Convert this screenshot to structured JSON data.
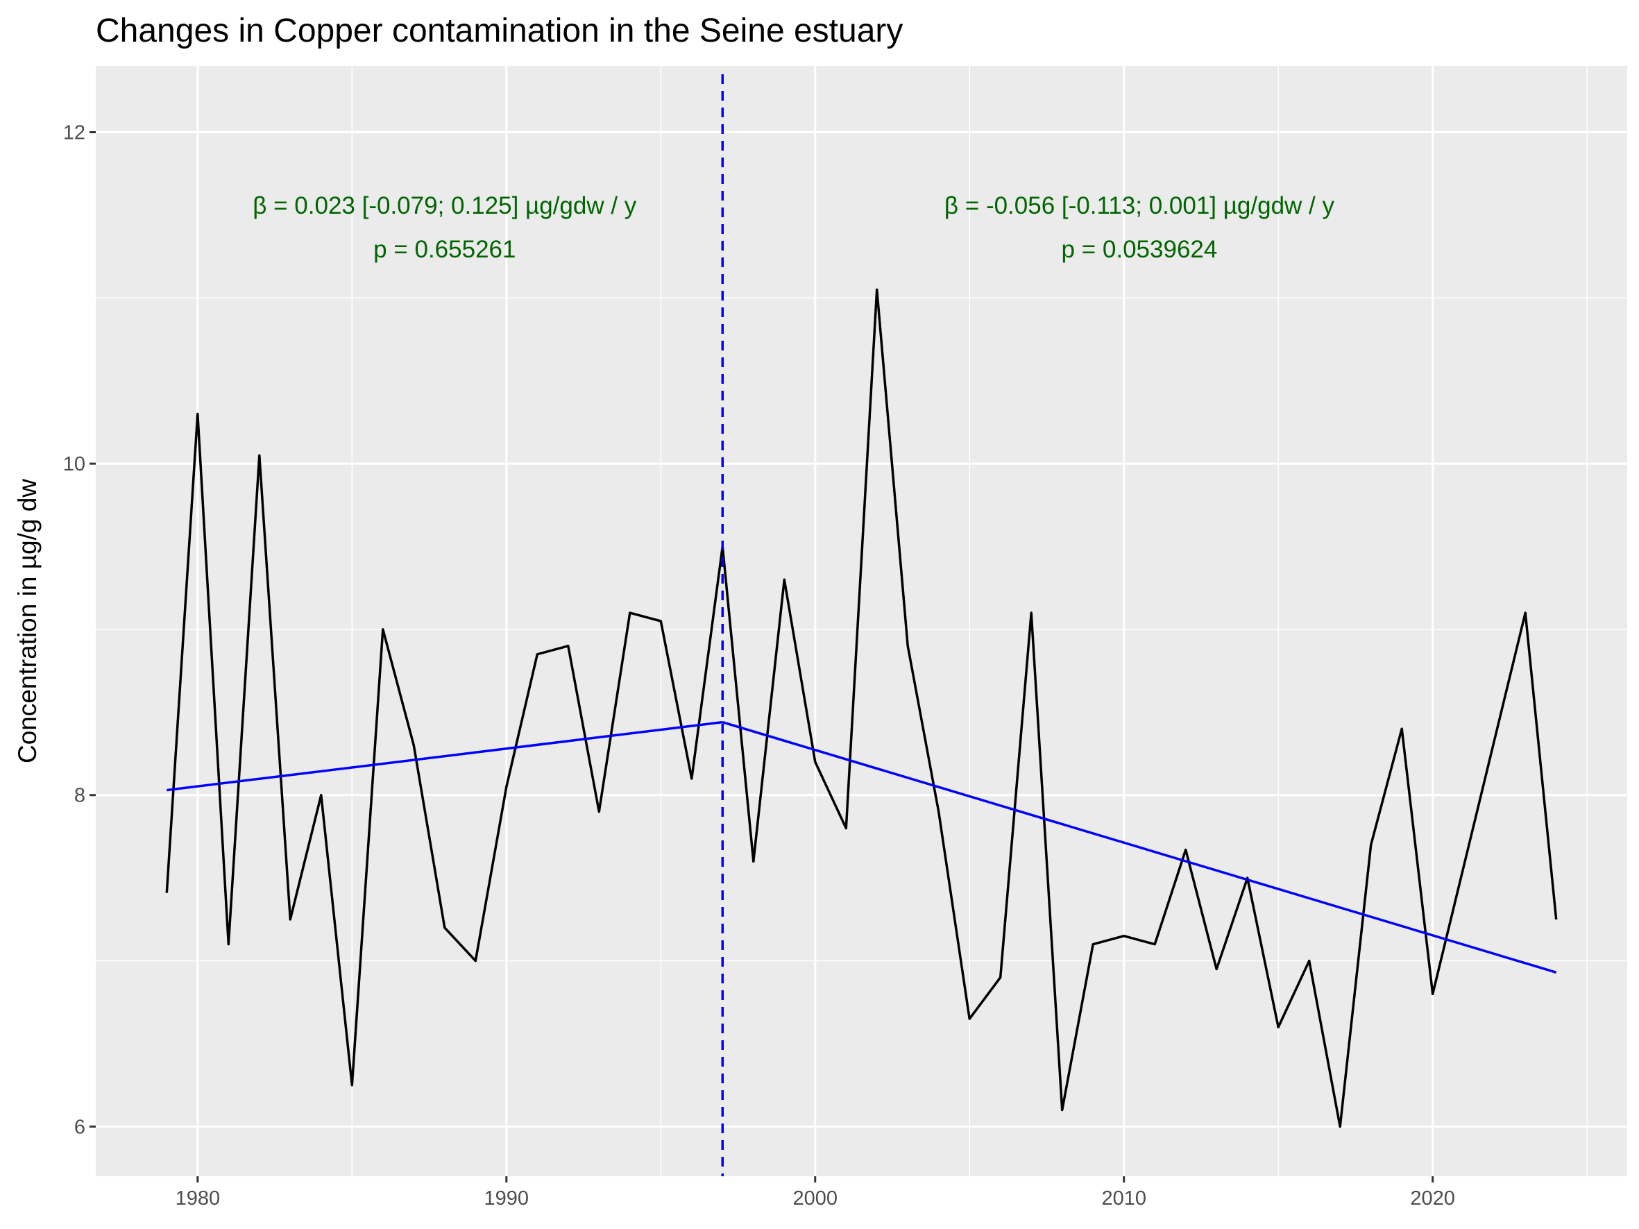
{
  "chart_data": {
    "type": "line",
    "title": "Changes in Copper contamination in the Seine estuary",
    "xlabel": "",
    "ylabel": "Concentration in µg/g dw",
    "xlim": [
      1976.7,
      2026.3
    ],
    "ylim": [
      5.7,
      12.4
    ],
    "x_ticks": [
      1980,
      1990,
      2000,
      2010,
      2020
    ],
    "x_tick_labels": [
      "1980",
      "1990",
      "2000",
      "2010",
      "2020"
    ],
    "y_ticks": [
      6,
      8,
      10,
      12
    ],
    "y_tick_labels": [
      "6",
      "8",
      "10",
      "12"
    ],
    "grid": true,
    "breakpoint": 1997,
    "series": [
      {
        "x": [
          1979,
          1980,
          1981,
          1982,
          1983,
          1984,
          1985,
          1986,
          1987,
          1988,
          1989,
          1990,
          1991,
          1992,
          1993,
          1994,
          1995,
          1996,
          1997,
          1998,
          1999,
          2000,
          2001,
          2002,
          2003,
          2004,
          2005,
          2006,
          2007,
          2008,
          2009,
          2010,
          2011,
          2012,
          2013,
          2014,
          2015,
          2016,
          2017,
          2018,
          2019,
          2020,
          2023,
          2024
        ],
        "y": [
          7.41,
          10.3,
          7.1,
          10.05,
          7.25,
          8.0,
          6.25,
          9.0,
          8.3,
          7.2,
          7.0,
          8.05,
          8.85,
          8.9,
          7.9,
          9.1,
          9.05,
          8.1,
          9.5,
          7.6,
          9.3,
          8.2,
          7.8,
          11.05,
          8.9,
          7.9,
          6.65,
          6.9,
          9.1,
          6.1,
          7.1,
          7.15,
          7.1,
          7.67,
          6.95,
          7.5,
          6.6,
          7.0,
          6.0,
          7.7,
          8.4,
          6.8,
          9.1,
          7.25
        ],
        "color": "#000000"
      }
    ],
    "trend_segments": [
      {
        "x": [
          1979,
          1997
        ],
        "y": [
          8.03,
          8.44
        ],
        "color": "#0000ff"
      },
      {
        "x": [
          1997,
          2024
        ],
        "y": [
          8.44,
          6.93
        ],
        "color": "#0000ff"
      }
    ],
    "annotations": [
      {
        "line1": "β = 0.023 [-0.079; 0.125] µg/gdw / y",
        "line2": "p = 0.655261",
        "x": 1988.0,
        "y": 11.45
      },
      {
        "line1": "β = -0.056 [-0.113; 0.001] µg/gdw / y",
        "line2": "p = 0.0539624",
        "x": 2010.5,
        "y": 11.45
      }
    ],
    "annotation_color": "#006400"
  }
}
